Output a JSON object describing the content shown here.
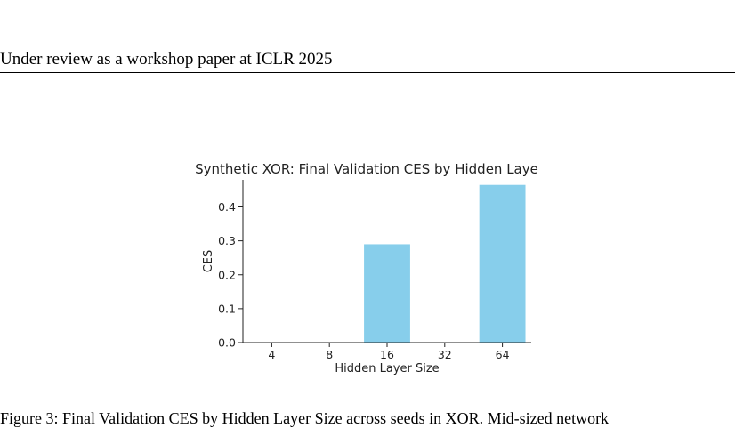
{
  "header": {
    "text": "Under review as a workshop paper at ICLR 2025"
  },
  "figure": {
    "caption": "Figure 3: Final Validation CES by Hidden Layer Size across seeds in XOR. Mid-sized network"
  },
  "chart_data": {
    "type": "bar",
    "title": "Synthetic XOR: Final Validation CES by Hidden Laye",
    "xlabel": "Hidden Layer Size",
    "ylabel": "CES",
    "categories": [
      "4",
      "8",
      "16",
      "32",
      "64"
    ],
    "values": [
      0.0,
      0.0,
      0.29,
      0.0,
      0.465
    ],
    "ylim": [
      0,
      0.48
    ],
    "yticks": [
      0.0,
      0.1,
      0.2,
      0.3,
      0.4
    ],
    "bar_color": "#87CEEB",
    "grid": false
  }
}
